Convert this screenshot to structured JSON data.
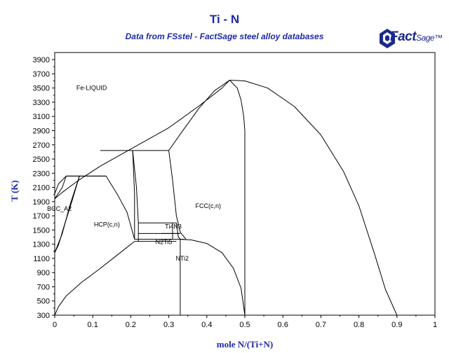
{
  "header": {
    "title": "Ti - N",
    "subtitle": "Data from FSstel - FactSage steel alloy databases",
    "logo_main": "Fact",
    "logo_sub": "Sage"
  },
  "colors": {
    "title": "#1f2aa8",
    "axis_title": "#1f2aa8",
    "lines": "#000000",
    "logo": "#1c2a8c"
  },
  "chart_data": {
    "type": "line",
    "title": "Ti - N",
    "subtitle": "Data from FSstel - FactSage steel alloy databases",
    "xlabel": "mole N/(Ti+N)",
    "ylabel": "T (K)",
    "xlim": [
      0,
      1
    ],
    "ylim": [
      300,
      4000
    ],
    "x_ticks": [
      "0",
      "0.1",
      "0.2",
      "0.3",
      "0.4",
      "0.5",
      "0.6",
      "0.7",
      "0.8",
      "0.9",
      "1"
    ],
    "y_ticks": [
      "300",
      "500",
      "700",
      "900",
      "1100",
      "1300",
      "1500",
      "1700",
      "1900",
      "2100",
      "2300",
      "2500",
      "2700",
      "2900",
      "3100",
      "3300",
      "3500",
      "3700",
      "3900"
    ],
    "grid": false,
    "region_labels": [
      {
        "text": "Fe-LIQUID",
        "x": 0.057,
        "y": 3500
      },
      {
        "text": "BCC_A2",
        "x": -0.02,
        "y": 1800
      },
      {
        "text": "HCP(c,n)",
        "x": 0.103,
        "y": 1580
      },
      {
        "text": "FCC(c,n)",
        "x": 0.37,
        "y": 1840
      },
      {
        "text": "Ti4N3",
        "x": 0.29,
        "y": 1550
      },
      {
        "text": "N2Ti5",
        "x": 0.265,
        "y": 1330
      },
      {
        "text": "NTi2",
        "x": 0.318,
        "y": 1100
      }
    ],
    "series": [
      {
        "points": [
          [
            0,
            1940
          ],
          [
            0.02,
            2030
          ],
          [
            0.06,
            2190
          ],
          [
            0.12,
            2400
          ],
          [
            0.2,
            2640
          ],
          [
            0.3,
            2940
          ],
          [
            0.38,
            3250
          ],
          [
            0.44,
            3500
          ],
          [
            0.46,
            3610
          ]
        ]
      },
      {
        "points": [
          [
            0.46,
            3610
          ],
          [
            0.5,
            3600
          ],
          [
            0.56,
            3500
          ],
          [
            0.63,
            3240
          ],
          [
            0.7,
            2840
          ],
          [
            0.76,
            2320
          ],
          [
            0.8,
            1840
          ],
          [
            0.84,
            1180
          ],
          [
            0.87,
            660
          ],
          [
            0.9,
            300
          ]
        ]
      },
      {
        "points": [
          [
            0.46,
            3610
          ],
          [
            0.42,
            3460
          ],
          [
            0.38,
            3220
          ],
          [
            0.33,
            2850
          ],
          [
            0.3,
            2620
          ]
        ]
      },
      {
        "points": [
          [
            0.46,
            3610
          ],
          [
            0.48,
            3500
          ],
          [
            0.49,
            3330
          ],
          [
            0.497,
            3100
          ],
          [
            0.5,
            2900
          ],
          [
            0.5,
            300
          ]
        ]
      },
      {
        "points": [
          [
            0.12,
            2620
          ],
          [
            0.3,
            2620
          ]
        ]
      },
      {
        "points": [
          [
            0.03,
            2260
          ],
          [
            0.135,
            2260
          ]
        ]
      },
      {
        "points": [
          [
            0,
            1940
          ],
          [
            0.02,
            2100
          ],
          [
            0.03,
            2260
          ]
        ]
      },
      {
        "points": [
          [
            0,
            2010
          ],
          [
            0.01,
            2150
          ],
          [
            0.03,
            2260
          ]
        ]
      },
      {
        "points": [
          [
            0.03,
            2260
          ],
          [
            0.065,
            2260
          ]
        ]
      },
      {
        "points": [
          [
            0,
            1180
          ],
          [
            0.02,
            1450
          ],
          [
            0.04,
            1850
          ],
          [
            0.065,
            2260
          ]
        ]
      },
      {
        "points": [
          [
            0,
            1180
          ],
          [
            0.01,
            1290
          ],
          [
            0.025,
            1560
          ],
          [
            0.045,
            1900
          ],
          [
            0.065,
            2260
          ]
        ]
      },
      {
        "points": [
          [
            0.065,
            2260
          ],
          [
            0.135,
            2260
          ]
        ]
      },
      {
        "points": [
          [
            0.135,
            2260
          ],
          [
            0.165,
            2000
          ],
          [
            0.19,
            1750
          ],
          [
            0.21,
            1370
          ]
        ]
      },
      {
        "points": [
          [
            0.205,
            2620
          ],
          [
            0.21,
            2000
          ],
          [
            0.21,
            1370
          ]
        ]
      },
      {
        "points": [
          [
            0.205,
            2620
          ],
          [
            0.215,
            2100
          ],
          [
            0.22,
            1600
          ],
          [
            0.22,
            1340
          ]
        ]
      },
      {
        "points": [
          [
            0.3,
            2620
          ],
          [
            0.31,
            2200
          ],
          [
            0.32,
            1700
          ],
          [
            0.33,
            1470
          ],
          [
            0.345,
            1370
          ]
        ]
      },
      {
        "points": [
          [
            0.22,
            1600
          ],
          [
            0.32,
            1600
          ]
        ]
      },
      {
        "points": [
          [
            0.22,
            1450
          ],
          [
            0.33,
            1450
          ]
        ]
      },
      {
        "points": [
          [
            0.21,
            1370
          ],
          [
            0.34,
            1370
          ]
        ]
      },
      {
        "points": [
          [
            0.21,
            1340
          ],
          [
            0.32,
            1340
          ]
        ]
      },
      {
        "points": [
          [
            0.31,
            1600
          ],
          [
            0.31,
            1370
          ]
        ]
      },
      {
        "points": [
          [
            0.32,
            1600
          ],
          [
            0.325,
            1400
          ],
          [
            0.33,
            1370
          ]
        ]
      },
      {
        "points": [
          [
            0.33,
            1370
          ],
          [
            0.33,
            300
          ]
        ]
      },
      {
        "points": [
          [
            0.33,
            1370
          ],
          [
            0.36,
            1360
          ],
          [
            0.4,
            1310
          ],
          [
            0.44,
            1180
          ],
          [
            0.47,
            960
          ],
          [
            0.49,
            680
          ],
          [
            0.5,
            300
          ]
        ]
      },
      {
        "points": [
          [
            0,
            300
          ],
          [
            0.01,
            420
          ],
          [
            0.03,
            570
          ],
          [
            0.07,
            760
          ],
          [
            0.12,
            960
          ],
          [
            0.17,
            1170
          ],
          [
            0.21,
            1340
          ]
        ]
      },
      {
        "points": [
          [
            0.28,
            1450
          ],
          [
            0.33,
            1450
          ]
        ]
      }
    ]
  }
}
